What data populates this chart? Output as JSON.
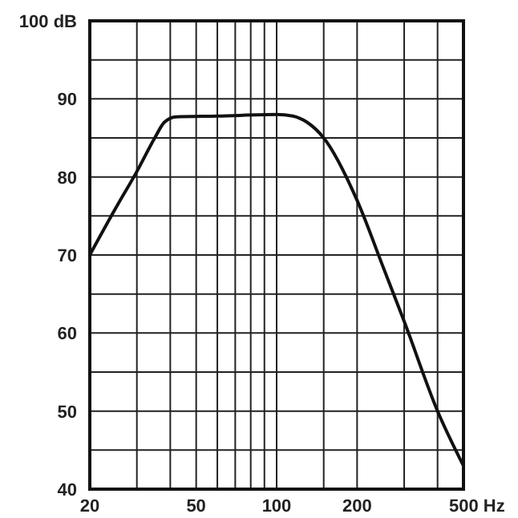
{
  "chart_data": {
    "type": "line",
    "log": "x",
    "grid": true,
    "marker": "none",
    "line_style": "solid",
    "xlim": [
      20,
      500
    ],
    "ylim": [
      40,
      100
    ],
    "xticks": [
      20,
      {
        "value": 30,
        "label": null
      },
      {
        "value": 40,
        "label": null
      },
      50,
      {
        "value": 60,
        "label": null
      },
      {
        "value": 70,
        "label": null
      },
      {
        "value": 80,
        "label": null
      },
      {
        "value": 90,
        "label": null
      },
      100,
      {
        "value": 150,
        "label": null
      },
      200,
      {
        "value": 300,
        "label": null
      },
      {
        "value": 400,
        "label": null
      },
      {
        "value": 500,
        "label": "500 Hz"
      }
    ],
    "yticks": [
      40,
      {
        "value": 45,
        "label": null
      },
      50,
      {
        "value": 55,
        "label": null
      },
      60,
      {
        "value": 65,
        "label": null
      },
      70,
      {
        "value": 75,
        "label": null
      },
      80,
      {
        "value": 85,
        "label": null
      },
      90,
      {
        "value": 95,
        "label": null
      },
      {
        "value": 100,
        "label": "100 dB"
      }
    ],
    "series": [
      {
        "color": "#111111",
        "x": [
          20,
          25,
          30,
          35,
          38,
          42,
          60,
          100,
          115,
          130,
          150,
          200,
          250,
          300,
          400,
          500
        ],
        "values": [
          70,
          76,
          80.7,
          85,
          87,
          87.7,
          87.8,
          88,
          87.8,
          87,
          85,
          77,
          68.5,
          61.5,
          50,
          43
        ]
      }
    ]
  }
}
